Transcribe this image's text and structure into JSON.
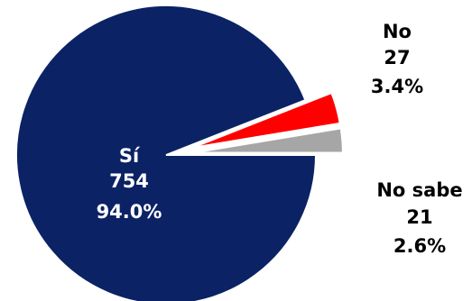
{
  "chart_data": {
    "type": "pie",
    "slices": [
      {
        "label": "Sí",
        "value": 754,
        "percent": "94.0%",
        "color": "#0b2265"
      },
      {
        "label": "No",
        "value": 27,
        "percent": "3.4%",
        "color": "#ff0000"
      },
      {
        "label": "No sabe",
        "value": 21,
        "percent": "2.6%",
        "color": "#a6a6a6"
      }
    ],
    "exploded": [
      "No",
      "No sabe"
    ],
    "legend": "none"
  }
}
